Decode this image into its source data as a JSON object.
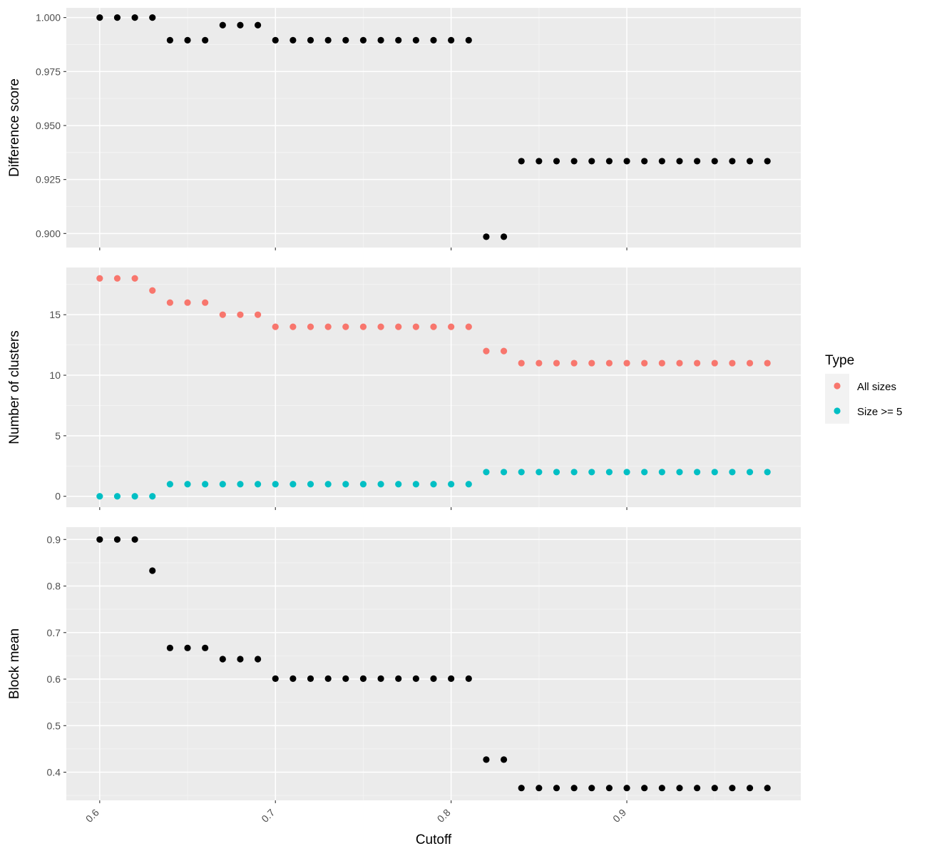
{
  "chart_data": {
    "type": "scatter",
    "xlabel": "Cutoff",
    "xlim": [
      0.581,
      0.999
    ],
    "x_ticks": [
      "0.6",
      "0.7",
      "0.8",
      "0.9"
    ],
    "x": [
      0.6,
      0.61,
      0.62,
      0.63,
      0.64,
      0.65,
      0.66,
      0.67,
      0.68,
      0.69,
      0.7,
      0.71,
      0.72,
      0.73,
      0.74,
      0.75,
      0.76,
      0.77,
      0.78,
      0.79,
      0.8,
      0.81,
      0.82,
      0.83,
      0.84,
      0.85,
      0.86,
      0.87,
      0.88,
      0.89,
      0.9,
      0.91,
      0.92,
      0.93,
      0.94,
      0.95,
      0.96,
      0.97,
      0.98
    ],
    "facets": [
      {
        "ylabel": "Difference score",
        "ylim": [
          0.8935,
          1.0045
        ],
        "y_ticks": [
          "0.900",
          "0.925",
          "0.950",
          "0.975",
          "1.000"
        ],
        "series": [
          {
            "color": "#000000",
            "values": [
              1.0,
              1.0,
              1.0,
              1.0,
              0.9895,
              0.9895,
              0.9895,
              0.9965,
              0.9965,
              0.9965,
              0.9895,
              0.9895,
              0.9895,
              0.9895,
              0.9895,
              0.9895,
              0.9895,
              0.9895,
              0.9895,
              0.9895,
              0.9895,
              0.9895,
              0.8985,
              0.8985,
              0.9335,
              0.9335,
              0.9335,
              0.9335,
              0.9335,
              0.9335,
              0.9335,
              0.9335,
              0.9335,
              0.9335,
              0.9335,
              0.9335,
              0.9335,
              0.9335,
              0.9335
            ]
          }
        ]
      },
      {
        "ylabel": "Number of clusters",
        "ylim": [
          -0.9,
          18.9
        ],
        "y_ticks": [
          "0",
          "5",
          "10",
          "15"
        ],
        "series": [
          {
            "name": "All sizes",
            "color": "#F8766D",
            "values": [
              18,
              18,
              18,
              17,
              16,
              16,
              16,
              15,
              15,
              15,
              14,
              14,
              14,
              14,
              14,
              14,
              14,
              14,
              14,
              14,
              14,
              14,
              12,
              12,
              11,
              11,
              11,
              11,
              11,
              11,
              11,
              11,
              11,
              11,
              11,
              11,
              11,
              11,
              11
            ]
          },
          {
            "name": "Size >= 5",
            "color": "#00BFC4",
            "values": [
              0,
              0,
              0,
              0,
              1,
              1,
              1,
              1,
              1,
              1,
              1,
              1,
              1,
              1,
              1,
              1,
              1,
              1,
              1,
              1,
              1,
              1,
              2,
              2,
              2,
              2,
              2,
              2,
              2,
              2,
              2,
              2,
              2,
              2,
              2,
              2,
              2,
              2,
              2
            ]
          }
        ]
      },
      {
        "ylabel": "Block mean",
        "ylim": [
          0.3395,
          0.9265
        ],
        "y_ticks": [
          "0.4",
          "0.5",
          "0.6",
          "0.7",
          "0.8",
          "0.9"
        ],
        "series": [
          {
            "color": "#000000",
            "values": [
              0.9,
              0.9,
              0.9,
              0.833,
              0.667,
              0.667,
              0.667,
              0.643,
              0.643,
              0.643,
              0.601,
              0.601,
              0.601,
              0.601,
              0.601,
              0.601,
              0.601,
              0.601,
              0.601,
              0.601,
              0.601,
              0.601,
              0.427,
              0.427,
              0.366,
              0.366,
              0.366,
              0.366,
              0.366,
              0.366,
              0.366,
              0.366,
              0.366,
              0.366,
              0.366,
              0.366,
              0.366,
              0.366,
              0.366
            ]
          }
        ]
      }
    ],
    "legend": {
      "title": "Type",
      "position": "right",
      "entries": [
        {
          "label": "All sizes",
          "color": "#F8766D"
        },
        {
          "label": "Size >= 5",
          "color": "#00BFC4"
        }
      ]
    },
    "grid": true,
    "panel_background": "#EBEBEB"
  }
}
